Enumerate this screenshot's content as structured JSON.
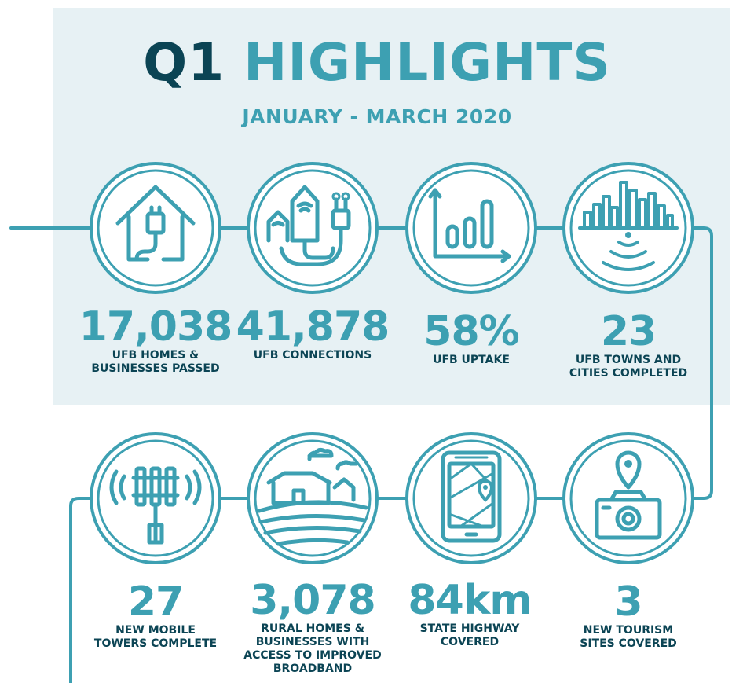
{
  "header": {
    "title_prefix": "Q1",
    "title_main": "HIGHLIGHTS",
    "subtitle": "JANUARY - MARCH 2020"
  },
  "colors": {
    "accent": "#3da0b2",
    "dark": "#0b4454",
    "panel": "#e7f1f4"
  },
  "row1": [
    {
      "icon": "house-plug-icon",
      "value": "17,038",
      "label_lines": [
        "UFB HOMES &",
        "BUSINESSES PASSED"
      ]
    },
    {
      "icon": "buildings-plug-icon",
      "value": "41,878",
      "label_lines": [
        "UFB CONNECTIONS"
      ]
    },
    {
      "icon": "bar-chart-icon",
      "value": "58%",
      "label_lines": [
        "UFB UPTAKE"
      ]
    },
    {
      "icon": "city-wifi-icon",
      "value": "23",
      "label_lines": [
        "UFB TOWNS AND",
        "CITIES COMPLETED"
      ]
    }
  ],
  "row2": [
    {
      "icon": "mobile-tower-icon",
      "value": "27",
      "label_lines": [
        "NEW MOBILE",
        "TOWERS COMPLETE"
      ]
    },
    {
      "icon": "rural-home-icon",
      "value": "3,078",
      "label_lines": [
        "RURAL HOMES &",
        "BUSINESSES WITH",
        "ACCESS TO IMPROVED",
        "BROADBAND"
      ]
    },
    {
      "icon": "tablet-map-icon",
      "value": "84km",
      "label_lines": [
        "STATE HIGHWAY",
        "COVERED"
      ]
    },
    {
      "icon": "camera-pin-icon",
      "value": "3",
      "label_lines": [
        "NEW TOURISM",
        "SITES COVERED"
      ]
    }
  ]
}
